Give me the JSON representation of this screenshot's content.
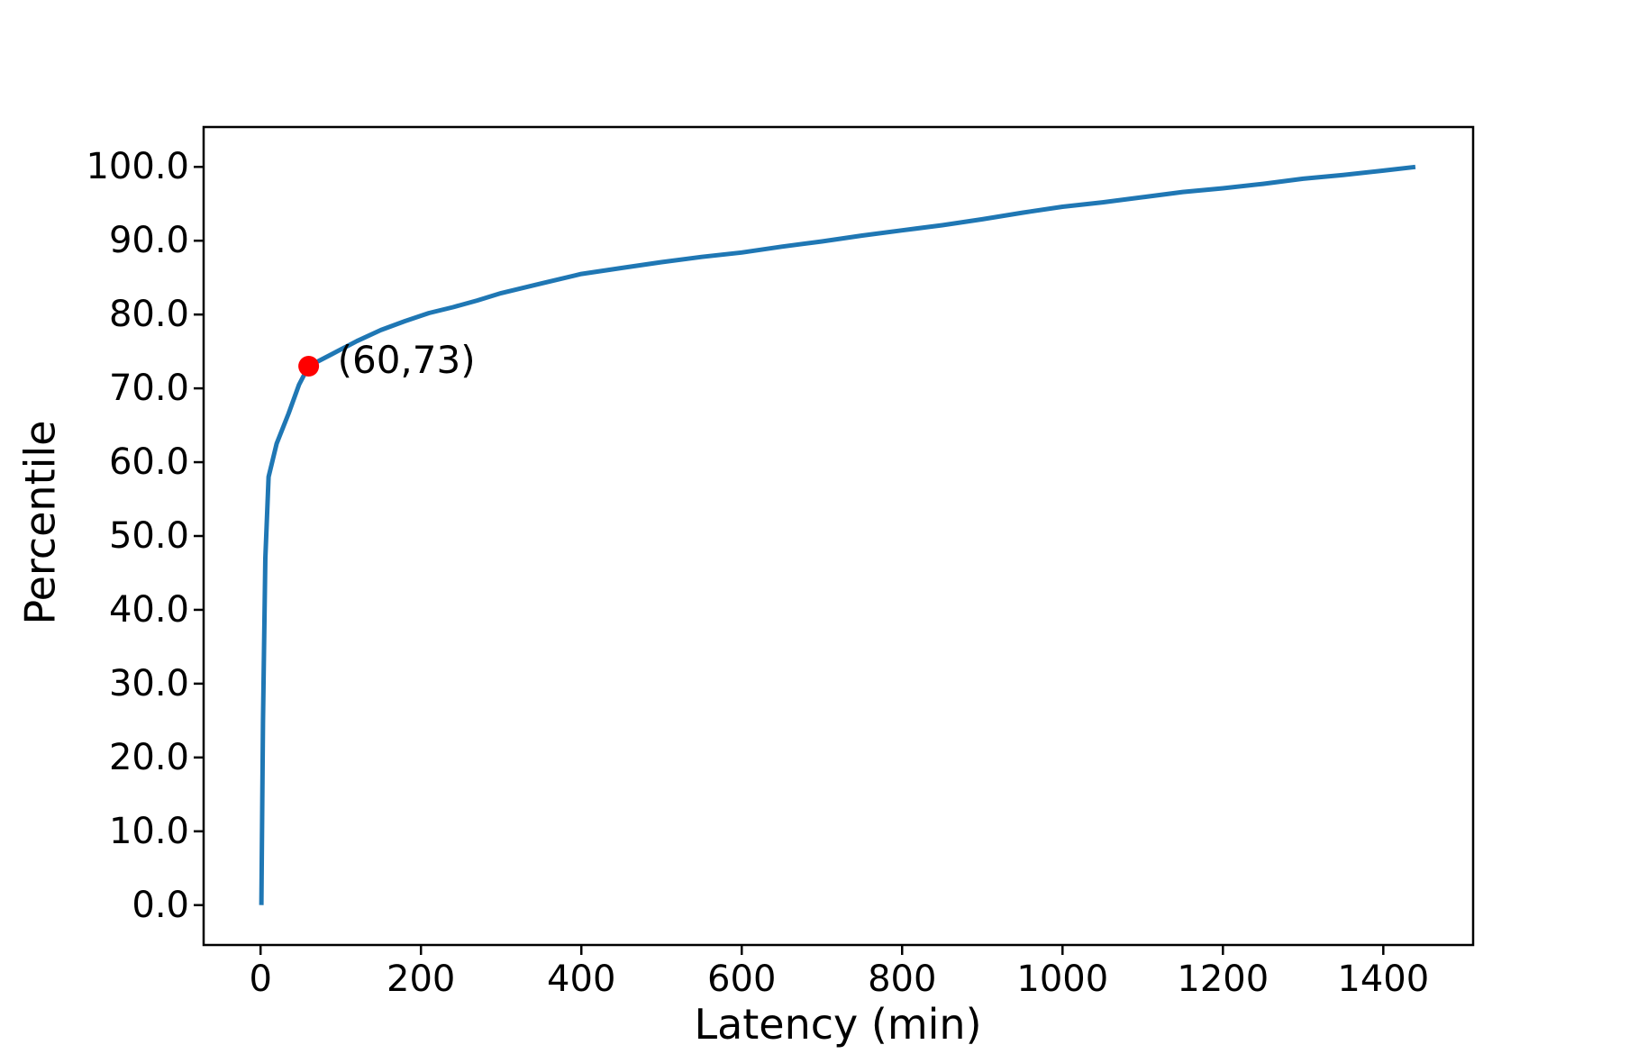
{
  "figure": {
    "background": "#ffffff",
    "spine_color": "#000000",
    "text_color": "#000000"
  },
  "chart_data": {
    "type": "line",
    "xlabel": "Latency (min)",
    "ylabel": "Percentile",
    "grid": false,
    "xlim": [
      -71,
      1512
    ],
    "ylim": [
      -5.4,
      105.4
    ],
    "xticks": {
      "values": [
        0,
        200,
        400,
        600,
        800,
        1000,
        1200,
        1400
      ],
      "labels": [
        "0",
        "200",
        "400",
        "600",
        "800",
        "1000",
        "1200",
        "1400"
      ]
    },
    "yticks": {
      "values": [
        0,
        10,
        20,
        30,
        40,
        50,
        60,
        70,
        80,
        90,
        100
      ],
      "labels": [
        "0.0",
        "10.0",
        "20.0",
        "30.0",
        "40.0",
        "50.0",
        "60.0",
        "70.0",
        "80.0",
        "90.0",
        "100.0"
      ]
    },
    "series": [
      {
        "name": "latency-percentile-cdf",
        "color": "#1f77b4",
        "points": [
          [
            1,
            0
          ],
          [
            3,
            25
          ],
          [
            6,
            47
          ],
          [
            10,
            58
          ],
          [
            20,
            62.5
          ],
          [
            35,
            66.6
          ],
          [
            48,
            70.5
          ],
          [
            60,
            73
          ],
          [
            90,
            74.7
          ],
          [
            120,
            76.4
          ],
          [
            150,
            77.9
          ],
          [
            180,
            79.1
          ],
          [
            210,
            80.2
          ],
          [
            240,
            81.0
          ],
          [
            270,
            81.9
          ],
          [
            300,
            82.9
          ],
          [
            350,
            84.2
          ],
          [
            400,
            85.5
          ],
          [
            450,
            86.3
          ],
          [
            500,
            87.1
          ],
          [
            550,
            87.8
          ],
          [
            600,
            88.4
          ],
          [
            650,
            89.2
          ],
          [
            700,
            89.9
          ],
          [
            750,
            90.7
          ],
          [
            800,
            91.4
          ],
          [
            850,
            92.1
          ],
          [
            900,
            92.9
          ],
          [
            950,
            93.8
          ],
          [
            1000,
            94.6
          ],
          [
            1050,
            95.2
          ],
          [
            1100,
            95.9
          ],
          [
            1150,
            96.6
          ],
          [
            1200,
            97.1
          ],
          [
            1250,
            97.7
          ],
          [
            1300,
            98.4
          ],
          [
            1350,
            98.9
          ],
          [
            1400,
            99.5
          ],
          [
            1440,
            100
          ]
        ]
      }
    ],
    "annotation": {
      "text": "(60,73)",
      "x": 60,
      "y": 73,
      "marker_color": "#ff0000"
    }
  }
}
